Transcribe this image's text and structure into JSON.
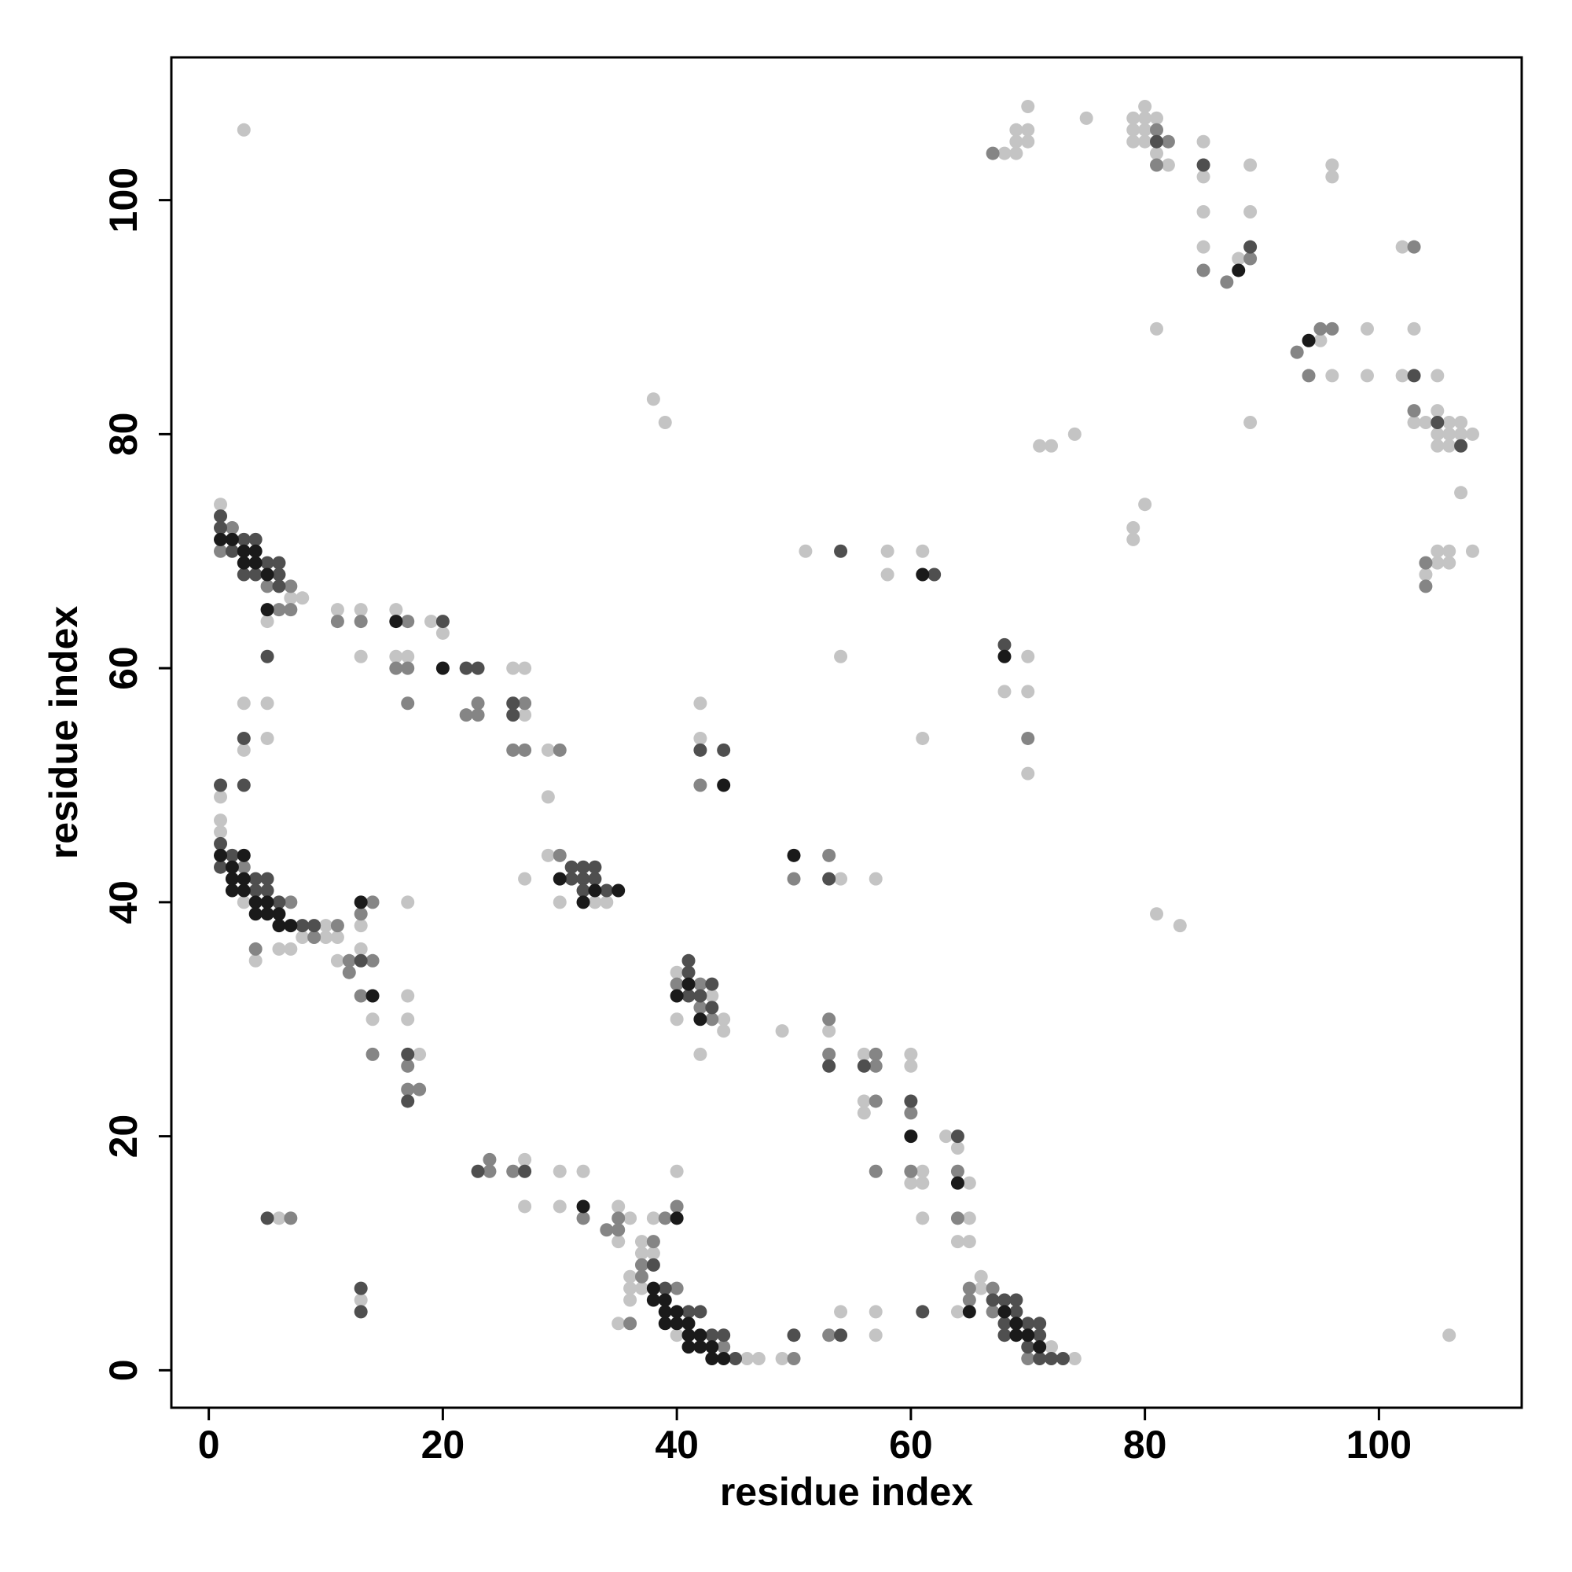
{
  "chart_data": {
    "type": "scatter",
    "xlabel": "residue index",
    "ylabel": "residue index",
    "xlim": [
      -3.2,
      112.2
    ],
    "ylim": [
      -3.2,
      112.2
    ],
    "xticks": [
      0,
      20,
      40,
      60,
      80,
      100
    ],
    "yticks": [
      0,
      20,
      40,
      60,
      80,
      100
    ],
    "series": [
      {
        "color": "#c4c4c4",
        "x": [
          3,
          1,
          5,
          5,
          5,
          7,
          8,
          3,
          3,
          1,
          1,
          1,
          3,
          4,
          6,
          7,
          8,
          10,
          10,
          11,
          11,
          11,
          13,
          13,
          13,
          13,
          13,
          14,
          16,
          16,
          17,
          17,
          17,
          17,
          18,
          19,
          20,
          26,
          27,
          27,
          27,
          27,
          27,
          29,
          29,
          29,
          30,
          30,
          30,
          32,
          33,
          34,
          35,
          35,
          35,
          36,
          36,
          36,
          36,
          37,
          37,
          37,
          38,
          38,
          38,
          39,
          40,
          40,
          40,
          40,
          42,
          42,
          42,
          43,
          44,
          44,
          46,
          47,
          49,
          49,
          51,
          53,
          54,
          54,
          54,
          56,
          56,
          56,
          57,
          57,
          57,
          58,
          58,
          60,
          60,
          60,
          61,
          61,
          61,
          61,
          61,
          63,
          64,
          64,
          64,
          65,
          65,
          65,
          66,
          66,
          68,
          68,
          69,
          69,
          69,
          70,
          70,
          70,
          70,
          70,
          70,
          71,
          72,
          72,
          74,
          74,
          75,
          79,
          79,
          79,
          79,
          79,
          80,
          80,
          80,
          80,
          80,
          81,
          81,
          81,
          81,
          82,
          83,
          85,
          85,
          85,
          85,
          88,
          89,
          89,
          89,
          95,
          96,
          96,
          96,
          99,
          99,
          102,
          102,
          103,
          103,
          104,
          104,
          105,
          105,
          105,
          105,
          105,
          105,
          106,
          106,
          106,
          106,
          106,
          106,
          107,
          107,
          107,
          108,
          108,
          6
        ],
        "y": [
          106,
          74,
          64,
          57,
          54,
          66,
          66,
          57,
          53,
          49,
          47,
          46,
          40,
          35,
          36,
          36,
          37,
          38,
          37,
          37,
          35,
          65,
          65,
          61,
          38,
          36,
          6,
          30,
          65,
          61,
          61,
          40,
          32,
          30,
          27,
          64,
          63,
          60,
          60,
          56,
          42,
          18,
          14,
          53,
          49,
          44,
          40,
          17,
          14,
          17,
          40,
          40,
          14,
          11,
          4,
          13,
          8,
          7,
          6,
          11,
          10,
          7,
          13,
          10,
          83,
          81,
          34,
          30,
          17,
          3,
          57,
          54,
          27,
          32,
          30,
          29,
          1,
          1,
          29,
          1,
          70,
          29,
          61,
          42,
          5,
          27,
          23,
          22,
          42,
          5,
          3,
          70,
          68,
          27,
          26,
          16,
          70,
          54,
          17,
          16,
          13,
          20,
          19,
          11,
          5,
          16,
          13,
          11,
          8,
          7,
          104,
          58,
          106,
          105,
          104,
          108,
          106,
          105,
          61,
          58,
          51,
          79,
          79,
          2,
          80,
          1,
          107,
          107,
          106,
          105,
          72,
          71,
          108,
          107,
          106,
          105,
          74,
          107,
          104,
          89,
          39,
          103,
          38,
          105,
          102,
          99,
          96,
          95,
          103,
          99,
          81,
          88,
          103,
          102,
          85,
          89,
          85,
          96,
          85,
          89,
          81,
          81,
          68,
          85,
          82,
          80,
          79,
          70,
          69,
          81,
          80,
          79,
          70,
          69,
          3,
          81,
          80,
          75,
          80,
          70,
          13
        ]
      },
      {
        "color": "#858585",
        "x": [
          1,
          2,
          5,
          6,
          7,
          7,
          3,
          4,
          7,
          9,
          11,
          11,
          12,
          12,
          13,
          13,
          13,
          14,
          14,
          14,
          16,
          17,
          17,
          17,
          17,
          17,
          18,
          22,
          23,
          23,
          24,
          24,
          26,
          26,
          27,
          27,
          30,
          30,
          32,
          34,
          35,
          35,
          36,
          37,
          37,
          38,
          39,
          40,
          40,
          40,
          42,
          42,
          42,
          43,
          44,
          50,
          50,
          53,
          53,
          53,
          53,
          57,
          57,
          57,
          57,
          60,
          60,
          64,
          64,
          65,
          65,
          67,
          67,
          67,
          70,
          70,
          81,
          81,
          82,
          85,
          87,
          89,
          93,
          94,
          95,
          96,
          103,
          103,
          104,
          104,
          7
        ],
        "y": [
          70,
          72,
          67,
          65,
          67,
          65,
          43,
          36,
          40,
          37,
          38,
          64,
          35,
          34,
          64,
          39,
          32,
          40,
          35,
          27,
          60,
          64,
          60,
          57,
          26,
          24,
          24,
          56,
          57,
          56,
          18,
          17,
          53,
          17,
          57,
          53,
          53,
          44,
          13,
          12,
          13,
          12,
          4,
          9,
          8,
          11,
          13,
          33,
          14,
          7,
          50,
          33,
          31,
          30,
          2,
          42,
          1,
          30,
          27,
          44,
          3,
          27,
          26,
          23,
          17,
          22,
          17,
          17,
          13,
          7,
          6,
          104,
          7,
          5,
          54,
          1,
          106,
          103,
          105,
          94,
          93,
          95,
          87,
          85,
          89,
          89,
          96,
          82,
          69,
          67,
          13
        ]
      },
      {
        "color": "#4f4f4f",
        "x": [
          1,
          1,
          2,
          3,
          3,
          4,
          4,
          5,
          5,
          6,
          6,
          6,
          3,
          3,
          1,
          1,
          1,
          2,
          4,
          4,
          5,
          5,
          6,
          8,
          9,
          13,
          13,
          13,
          17,
          17,
          20,
          22,
          23,
          23,
          26,
          26,
          27,
          31,
          31,
          32,
          32,
          32,
          33,
          33,
          34,
          38,
          39,
          41,
          41,
          41,
          41,
          42,
          42,
          42,
          43,
          43,
          43,
          44,
          44,
          45,
          50,
          53,
          53,
          54,
          54,
          56,
          60,
          61,
          62,
          64,
          67,
          68,
          68,
          68,
          68,
          69,
          69,
          70,
          70,
          71,
          71,
          71,
          72,
          73,
          81,
          85,
          89,
          103,
          105,
          107,
          5
        ],
        "y": [
          73,
          72,
          70,
          71,
          68,
          71,
          68,
          69,
          61,
          69,
          68,
          67,
          54,
          50,
          50,
          45,
          43,
          44,
          42,
          41,
          42,
          41,
          40,
          38,
          38,
          35,
          7,
          5,
          27,
          23,
          64,
          60,
          60,
          17,
          57,
          56,
          17,
          43,
          42,
          43,
          42,
          41,
          43,
          42,
          41,
          9,
          7,
          35,
          34,
          32,
          5,
          53,
          32,
          5,
          33,
          31,
          3,
          53,
          3,
          1,
          3,
          26,
          42,
          70,
          3,
          26,
          23,
          5,
          68,
          20,
          6,
          62,
          6,
          4,
          3,
          6,
          5,
          4,
          2,
          4,
          3,
          1,
          1,
          1,
          105,
          103,
          96,
          85,
          81,
          79,
          13
        ]
      },
      {
        "color": "#1a1a1a",
        "x": [
          1,
          2,
          3,
          3,
          4,
          4,
          5,
          5,
          1,
          2,
          2,
          2,
          3,
          3,
          3,
          4,
          4,
          5,
          5,
          6,
          6,
          7,
          13,
          14,
          16,
          20,
          30,
          32,
          32,
          33,
          35,
          38,
          38,
          39,
          39,
          39,
          40,
          40,
          40,
          40,
          41,
          41,
          41,
          41,
          42,
          42,
          42,
          43,
          43,
          44,
          44,
          50,
          60,
          61,
          64,
          65,
          68,
          68,
          69,
          69,
          70,
          71,
          88,
          94
        ],
        "y": [
          71,
          71,
          70,
          69,
          70,
          69,
          68,
          65,
          44,
          43,
          42,
          41,
          44,
          42,
          41,
          40,
          39,
          40,
          39,
          39,
          38,
          38,
          40,
          32,
          64,
          60,
          42,
          40,
          14,
          41,
          41,
          7,
          6,
          6,
          5,
          4,
          32,
          13,
          5,
          4,
          33,
          4,
          3,
          2,
          30,
          3,
          2,
          2,
          1,
          50,
          1,
          44,
          20,
          68,
          16,
          5,
          61,
          5,
          4,
          3,
          3,
          2,
          94,
          88
        ]
      }
    ]
  }
}
